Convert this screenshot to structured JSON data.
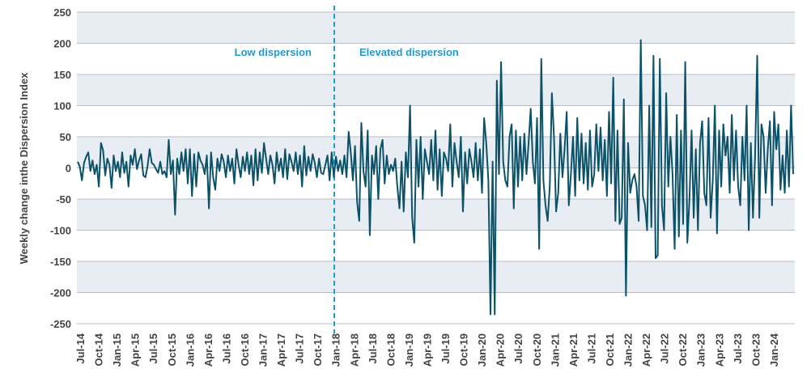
{
  "chart_data": {
    "type": "line",
    "title": "",
    "xlabel": "",
    "ylabel": "Weekly change inthe Dispersion Index",
    "ylim": [
      -250,
      250
    ],
    "yticks": [
      250,
      200,
      150,
      100,
      50,
      0,
      -50,
      -100,
      -150,
      -200,
      -250
    ],
    "x_tick_labels": [
      "Jul-14",
      "Oct-14",
      "Jan-15",
      "Apr-15",
      "Jul-15",
      "Oct-15",
      "Jan-16",
      "Apr-16",
      "Jul-16",
      "Oct-16",
      "Jan-17",
      "Apr-17",
      "Jul-17",
      "Oct-17",
      "Jan-18",
      "Apr-18",
      "Jul-18",
      "Oct-18",
      "Jan-19",
      "Apr-19",
      "Jul-19",
      "Oct-19",
      "Jan-20",
      "Apr-20",
      "Jul-20",
      "Oct-20",
      "Jan-21",
      "Apr-21",
      "Jul-21",
      "Oct-21",
      "Jan-22",
      "Apr-22",
      "Jul-22",
      "Oct-22",
      "Jan-23",
      "Apr-23",
      "Jul-23",
      "Oct-23",
      "Jan-24"
    ],
    "x_start": "Jul-14",
    "x_end": "Jul-24",
    "grid": "horizontal bands",
    "divider": {
      "at": "Jan-18",
      "style": "dashed"
    },
    "annotations": {
      "left": "Low dispersion",
      "right": "Elevated dispersion"
    },
    "colors": {
      "line": "#0b5268",
      "band": "#e8ecf3",
      "divider": "#1f9bd1",
      "text": "#444444"
    },
    "series": [
      {
        "values": [
          10,
          2,
          -20,
          8,
          18,
          25,
          -5,
          12,
          -10,
          5,
          -30,
          40,
          28,
          -12,
          15,
          5,
          -32,
          20,
          -5,
          10,
          -15,
          25,
          -8,
          10,
          -30,
          20,
          5,
          30,
          -2,
          12,
          22,
          -12,
          -15,
          3,
          30,
          8,
          5,
          -2,
          -8,
          10,
          -10,
          -5,
          -15,
          45,
          -10,
          12,
          -75,
          15,
          -10,
          25,
          -5,
          30,
          -25,
          30,
          -45,
          22,
          -30,
          25,
          12,
          5,
          -10,
          20,
          -65,
          25,
          -15,
          -35,
          15,
          -5,
          22,
          10,
          -15,
          20,
          -5,
          15,
          -25,
          30,
          5,
          -15,
          18,
          -5,
          25,
          -10,
          20,
          -28,
          30,
          -20,
          25,
          -8,
          40,
          15,
          -10,
          20,
          5,
          -25,
          25,
          -5,
          15,
          -15,
          30,
          -18,
          22,
          10,
          -5,
          25,
          -10,
          20,
          -30,
          35,
          -12,
          18,
          -5,
          22,
          8,
          -15,
          15,
          -8,
          -10,
          5,
          20,
          -20,
          25,
          -15,
          18,
          -5,
          12,
          -10,
          20,
          -15,
          58,
          25,
          -20,
          35,
          -55,
          -85,
          72,
          -5,
          -30,
          60,
          -108,
          20,
          -10,
          35,
          -50,
          30,
          45,
          -25,
          20,
          -10,
          5,
          -5,
          15,
          -30,
          -65,
          10,
          -70,
          25,
          -15,
          100,
          -80,
          -120,
          45,
          -30,
          50,
          -50,
          30,
          10,
          -10,
          45,
          -20,
          60,
          -35,
          30,
          -45,
          25,
          15,
          -5,
          70,
          -30,
          40,
          10,
          -15,
          50,
          -70,
          25,
          -25,
          30,
          10,
          -15,
          40,
          -20,
          30,
          -40,
          80,
          40,
          -20,
          -235,
          10,
          -235,
          140,
          -10,
          170,
          10,
          -20,
          -30,
          50,
          70,
          -65,
          60,
          -30,
          50,
          -20,
          55,
          -10,
          40,
          95,
          10,
          -25,
          80,
          -130,
          175,
          -20,
          -60,
          -85,
          -30,
          120,
          50,
          -70,
          -40,
          55,
          -15,
          30,
          90,
          -60,
          -10,
          50,
          -45,
          80,
          -20,
          55,
          -25,
          40,
          -35,
          60,
          -30,
          -10,
          70,
          -5,
          65,
          -20,
          45,
          -45,
          90,
          -25,
          145,
          -85,
          60,
          -90,
          -80,
          110,
          -205,
          40,
          -40,
          -20,
          -10,
          -30,
          -85,
          205,
          -45,
          -60,
          -100,
          100,
          -95,
          180,
          -145,
          -140,
          175,
          -60,
          -100,
          120,
          -30,
          50,
          -10,
          -130,
          85,
          -110,
          60,
          -90,
          170,
          -120,
          -50,
          60,
          -80,
          30,
          -100,
          40,
          75,
          -40,
          -60,
          80,
          -80,
          -20,
          100,
          -105,
          60,
          -30,
          70,
          20,
          50,
          -40,
          85,
          -20,
          60,
          -30,
          -60,
          50,
          -20,
          100,
          -100,
          40,
          -80,
          20,
          180,
          -80,
          70,
          50,
          -40,
          30,
          75,
          -60,
          90,
          30,
          70,
          -35,
          20,
          -40,
          60,
          -30,
          100,
          -10
        ]
      }
    ]
  }
}
